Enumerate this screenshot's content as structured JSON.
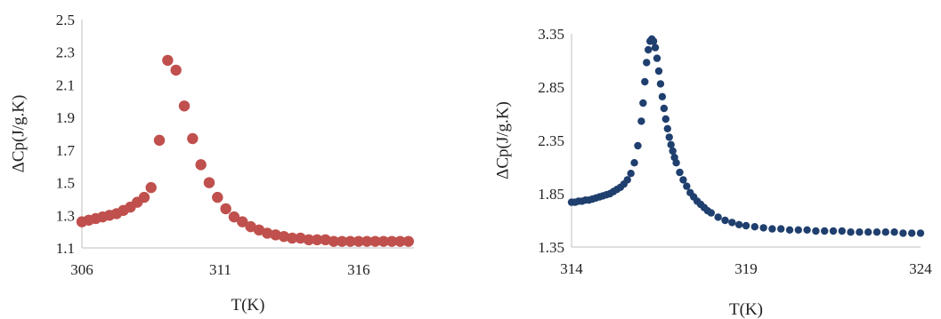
{
  "chart_data": [
    {
      "type": "scatter",
      "xlabel": "T(K)",
      "ylabel": "ΔCp(J/g.K)",
      "xlim": [
        306,
        318
      ],
      "ylim": [
        1.1,
        2.5
      ],
      "xticks": [
        "306",
        "311",
        "316"
      ],
      "yticks": [
        "1.1",
        "1.3",
        "1.5",
        "1.7",
        "1.9",
        "2.1",
        "2.3",
        "2.5"
      ],
      "grid": false,
      "marker_color": "#c0504d",
      "x": [
        306.0,
        306.25,
        306.5,
        306.75,
        307.0,
        307.25,
        307.5,
        307.75,
        308.0,
        308.25,
        308.5,
        308.8,
        309.1,
        309.4,
        309.7,
        310.0,
        310.3,
        310.6,
        310.9,
        311.2,
        311.5,
        311.8,
        312.1,
        312.4,
        312.7,
        313.0,
        313.3,
        313.6,
        313.9,
        314.2,
        314.5,
        314.8,
        315.1,
        315.4,
        315.7,
        316.0,
        316.3,
        316.6,
        316.9,
        317.2,
        317.5,
        317.8
      ],
      "y": [
        1.26,
        1.27,
        1.28,
        1.29,
        1.3,
        1.31,
        1.33,
        1.35,
        1.38,
        1.41,
        1.47,
        1.76,
        2.25,
        2.19,
        1.97,
        1.77,
        1.61,
        1.5,
        1.41,
        1.34,
        1.29,
        1.26,
        1.23,
        1.21,
        1.19,
        1.18,
        1.17,
        1.16,
        1.16,
        1.15,
        1.15,
        1.15,
        1.14,
        1.14,
        1.14,
        1.14,
        1.14,
        1.14,
        1.14,
        1.14,
        1.14,
        1.14
      ]
    },
    {
      "type": "scatter",
      "xlabel": "T(K)",
      "ylabel": "ΔCp(J/g.K)",
      "xlim": [
        314,
        324
      ],
      "ylim": [
        1.35,
        3.35
      ],
      "xticks": [
        "314",
        "319",
        "324"
      ],
      "yticks": [
        "1.35",
        "1.85",
        "2.35",
        "2.85",
        "3.35"
      ],
      "grid": false,
      "marker_color": "#1f3f6e",
      "x": [
        314.0,
        314.1,
        314.2,
        314.3,
        314.4,
        314.5,
        314.6,
        314.7,
        314.8,
        314.9,
        315.0,
        315.1,
        315.2,
        315.3,
        315.4,
        315.5,
        315.6,
        315.7,
        315.8,
        315.9,
        316.0,
        316.05,
        316.1,
        316.15,
        316.2,
        316.25,
        316.3,
        316.35,
        316.4,
        316.45,
        316.5,
        316.55,
        316.6,
        316.65,
        316.7,
        316.75,
        316.8,
        316.85,
        316.9,
        316.95,
        317.0,
        317.1,
        317.2,
        317.3,
        317.4,
        317.5,
        317.6,
        317.7,
        317.8,
        317.9,
        318.0,
        318.2,
        318.4,
        318.6,
        318.8,
        319.0,
        319.25,
        319.5,
        319.75,
        320.0,
        320.25,
        320.5,
        320.75,
        321.0,
        321.25,
        321.5,
        321.75,
        322.0,
        322.25,
        322.5,
        322.75,
        323.0,
        323.25,
        323.5,
        323.75,
        324.0
      ],
      "y": [
        1.77,
        1.77,
        1.78,
        1.78,
        1.79,
        1.79,
        1.8,
        1.81,
        1.82,
        1.83,
        1.84,
        1.85,
        1.87,
        1.89,
        1.91,
        1.94,
        1.98,
        2.04,
        2.14,
        2.3,
        2.53,
        2.7,
        2.9,
        3.08,
        3.2,
        3.28,
        3.3,
        3.28,
        3.22,
        3.12,
        3.0,
        2.88,
        2.76,
        2.65,
        2.55,
        2.46,
        2.38,
        2.31,
        2.25,
        2.19,
        2.14,
        2.05,
        1.98,
        1.92,
        1.86,
        1.82,
        1.78,
        1.75,
        1.72,
        1.69,
        1.67,
        1.63,
        1.6,
        1.58,
        1.56,
        1.55,
        1.54,
        1.53,
        1.52,
        1.52,
        1.51,
        1.51,
        1.51,
        1.5,
        1.5,
        1.5,
        1.5,
        1.49,
        1.49,
        1.49,
        1.49,
        1.49,
        1.49,
        1.48,
        1.48,
        1.48
      ]
    }
  ]
}
